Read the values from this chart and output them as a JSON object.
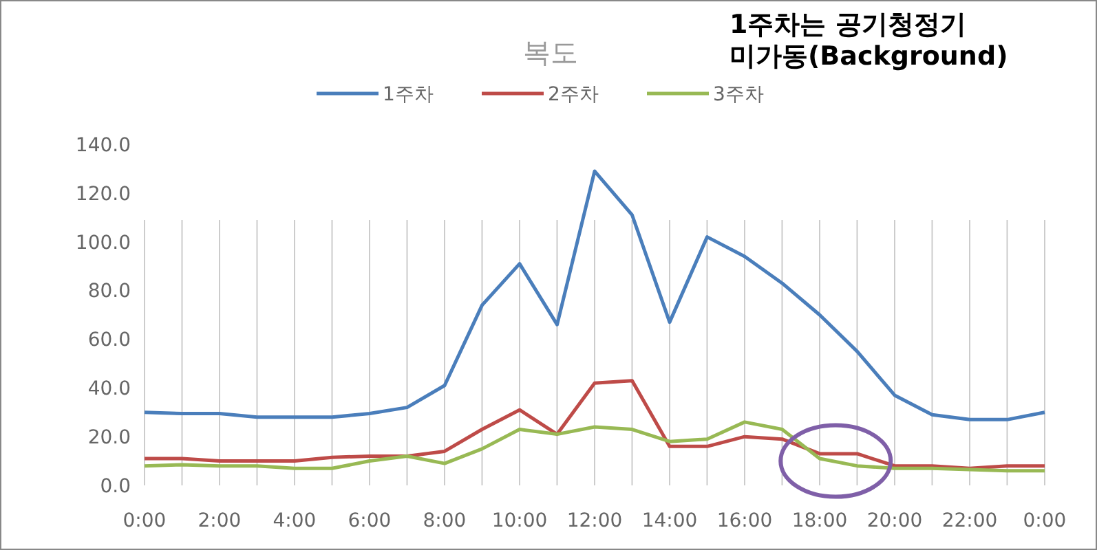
{
  "chart_data": {
    "type": "line",
    "title": "복도",
    "annotations": [
      "1주차는 공기청정기 미가동(Background)"
    ],
    "categories": [
      "0:00",
      null,
      "2:00",
      null,
      "4:00",
      null,
      "6:00",
      null,
      "8:00",
      null,
      "10:00",
      null,
      "12:00",
      null,
      "14:00",
      null,
      "16:00",
      null,
      "18:00",
      null,
      "20:00",
      null,
      "22:00",
      null,
      "0:00"
    ],
    "series": [
      {
        "name": "1주차",
        "color": "#4a7ebb",
        "values": [
          30,
          29.5,
          29.5,
          28,
          28,
          28,
          29.5,
          32,
          41,
          74,
          91,
          66,
          129,
          111,
          67,
          102,
          94,
          83,
          70,
          55,
          37,
          29,
          27,
          27,
          30
        ]
      },
      {
        "name": "2주차",
        "color": "#be4b48",
        "values": [
          11,
          11,
          10,
          10,
          10,
          11.5,
          12,
          12,
          14,
          23,
          31,
          21,
          42,
          43,
          16,
          16,
          20,
          19,
          13,
          13,
          8,
          8,
          7,
          8,
          8
        ]
      },
      {
        "name": "3주차",
        "color": "#98b954",
        "values": [
          8,
          8.5,
          8,
          8,
          7,
          7,
          10,
          12,
          9,
          15,
          23,
          21,
          24,
          23,
          18,
          19,
          26,
          23,
          11,
          8,
          7,
          7,
          6.5,
          6,
          6
        ]
      }
    ],
    "ylim": [
      0,
      140
    ],
    "yticks": [
      {
        "value": 0,
        "label": "0.0"
      },
      {
        "value": 20,
        "label": "20.0"
      },
      {
        "value": 40,
        "label": "40.0"
      },
      {
        "value": 60,
        "label": "60.0"
      },
      {
        "value": 80,
        "label": "80.0"
      },
      {
        "value": 100,
        "label": "100.0"
      },
      {
        "value": 120,
        "label": "120.0"
      },
      {
        "value": 140,
        "label": "140.0"
      }
    ],
    "grid": "x",
    "legend": "top",
    "marker": "none",
    "line_style": "solid"
  }
}
